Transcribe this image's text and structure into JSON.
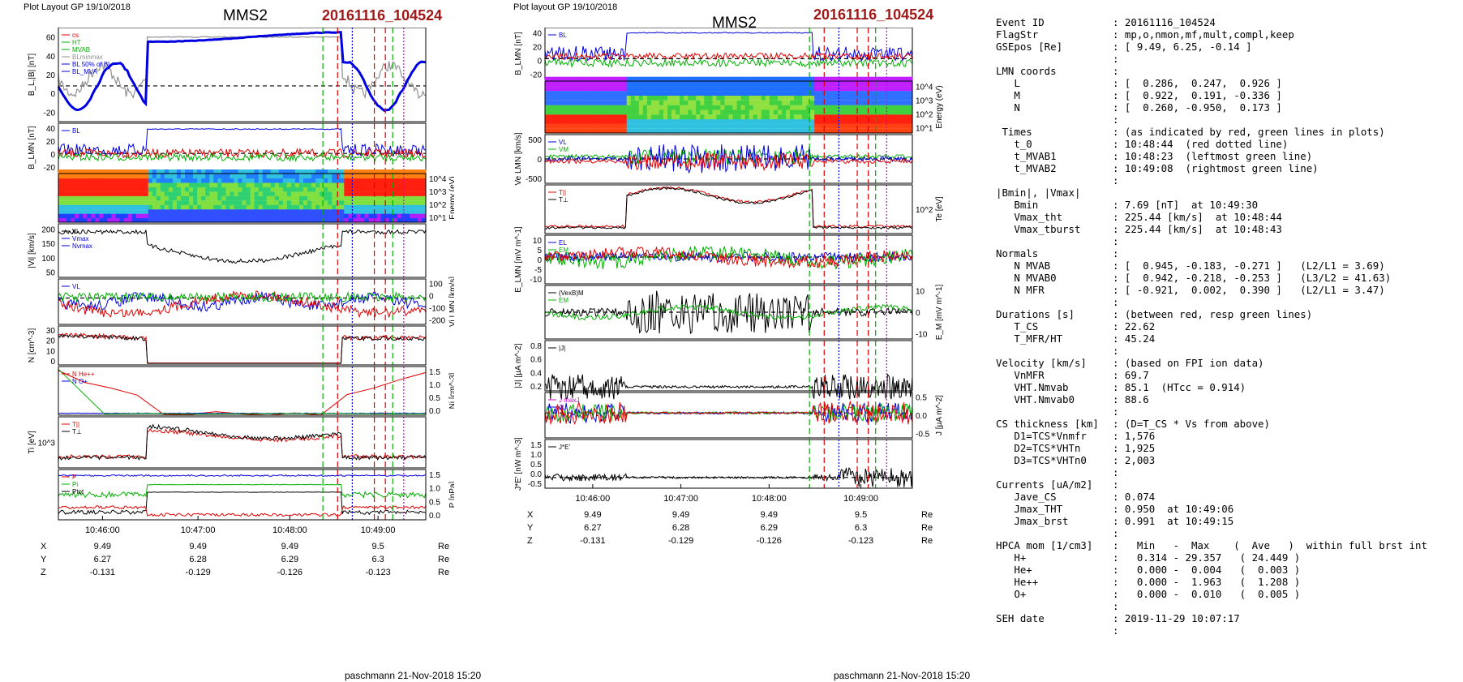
{
  "left_column": {
    "header": "Plot Layout GP 19/10/2018",
    "spacecraft": "MMS2",
    "event": "20161116_104524",
    "footer": "paschmann 21-Nov-2018 15:20",
    "time_ticks": [
      "10:46:00",
      "10:47:00",
      "10:48:00",
      "10:49:00"
    ],
    "position_rows": [
      {
        "label": "X",
        "values": [
          "9.49",
          "9.49",
          "9.49",
          "9.5"
        ],
        "unit": "Re"
      },
      {
        "label": "Y",
        "values": [
          "6.27",
          "6.28",
          "6.29",
          "6.3"
        ],
        "unit": "Re"
      },
      {
        "label": "Z",
        "values": [
          "-0.131",
          "-0.129",
          "-0.126",
          "-0.123"
        ],
        "unit": "Re"
      }
    ]
  },
  "right_column": {
    "header": "Plot layout GP 19/10/2018",
    "spacecraft": "MMS2",
    "event": "20161116_104524",
    "footer": "paschmann 21-Nov-2018 15:20",
    "time_ticks": [
      "10:46:00",
      "10:47:00",
      "10:48:00",
      "10:49:00"
    ],
    "position_rows": [
      {
        "label": "X",
        "values": [
          "9.49",
          "9.49",
          "9.49",
          "9.5"
        ],
        "unit": "Re"
      },
      {
        "label": "Y",
        "values": [
          "6.27",
          "6.28",
          "6.29",
          "6.3"
        ],
        "unit": "Re"
      },
      {
        "label": "Z",
        "values": [
          "-0.131",
          "-0.129",
          "-0.126",
          "-0.123"
        ],
        "unit": "Re"
      }
    ]
  },
  "chart_data": [
    {
      "type": "line",
      "group": "left",
      "panels": [
        {
          "ylabel": "B_L,|B| [nT]",
          "yticks": [
            "60",
            "40",
            "20",
            "0",
            "-20"
          ],
          "ytick_side": "left",
          "legend": [
            "cs",
            "HT",
            "MVAB",
            "BLminmax",
            "BL 50% of BL",
            "BL_MVA"
          ]
        },
        {
          "ylabel": "B_LMN [nT]",
          "yticks": [
            "40",
            "20",
            "0",
            "-20"
          ],
          "ytick_side": "left",
          "legend": [
            "BL"
          ]
        },
        {
          "ylabel": "Energy (eV)",
          "yticks": [
            "10^4",
            "10^3",
            "10^2",
            "10^1"
          ],
          "ytick_side": "right",
          "legend": []
        },
        {
          "ylabel": "|Vi| [km/s]",
          "yticks": [
            "200",
            "150",
            "100",
            "50"
          ],
          "ytick_side": "left",
          "legend": [
            "Vi",
            "Vmax",
            "Nvmax"
          ]
        },
        {
          "ylabel": "Vi LMN [km/s]",
          "yticks": [
            "100",
            "0",
            "-100",
            "-200"
          ],
          "ytick_side": "right",
          "legend": [
            "VL"
          ]
        },
        {
          "ylabel": "N [cm^-3]",
          "yticks": [
            "30",
            "20",
            "10",
            "0"
          ],
          "ytick_side": "left",
          "legend": []
        },
        {
          "ylabel": "Ni [cm^-3]",
          "yticks": [
            "1.5",
            "1.0",
            "0.5",
            "0.0"
          ],
          "ytick_side": "right",
          "legend": [
            "N He++",
            "N O+"
          ]
        },
        {
          "ylabel": "Ti [eV]",
          "yticks": [
            "10^3"
          ],
          "ytick_side": "left",
          "legend": [
            "T||",
            "T⊥"
          ]
        },
        {
          "ylabel": "P [nPa]",
          "yticks": [
            "1.5",
            "1.0",
            "0.5",
            "0.0"
          ],
          "ytick_side": "right",
          "legend": [
            "P",
            "Pi",
            "Ptot"
          ]
        }
      ]
    },
    {
      "type": "line",
      "group": "right",
      "panels": [
        {
          "ylabel": "B_LMN [nT]",
          "yticks": [
            "40",
            "20",
            "0",
            "-20"
          ],
          "ytick_side": "left",
          "legend": [
            "BL"
          ]
        },
        {
          "ylabel": "Energy (eV)",
          "yticks": [
            "10^4",
            "10^3",
            "10^2",
            "10^1"
          ],
          "ytick_side": "right",
          "legend": []
        },
        {
          "ylabel": "Ve LMN [km/s]",
          "yticks": [
            "500",
            "0",
            "-500"
          ],
          "ytick_side": "left",
          "legend": [
            "VL",
            "VM"
          ]
        },
        {
          "ylabel": "Te [eV]",
          "yticks": [
            "10^2"
          ],
          "ytick_side": "right",
          "legend": [
            "T||",
            "T⊥"
          ]
        },
        {
          "ylabel": "E_LMN [mV m^-1]",
          "yticks": [
            "10",
            "5",
            "0",
            "-5",
            "-10"
          ],
          "ytick_side": "left",
          "legend": [
            "EL",
            "EM",
            "EN"
          ]
        },
        {
          "ylabel": "E_M [mV m^-1]",
          "yticks": [
            "10",
            "0",
            "-10"
          ],
          "ytick_side": "right",
          "legend": [
            "(VexB)M",
            "EM"
          ]
        },
        {
          "ylabel": "|J| [µA m^-2]",
          "yticks": [
            "0.8",
            "0.6",
            "0.4",
            "0.2"
          ],
          "ytick_side": "left",
          "legend": [
            "|J|"
          ]
        },
        {
          "ylabel": "J [µA m^-2]",
          "yticks": [
            "0.5",
            "0.0",
            "-0.5"
          ],
          "ytick_side": "right",
          "legend": [
            "J maxJ",
            "JL"
          ]
        },
        {
          "ylabel": "J*E' [nW m^-3]",
          "yticks": [
            "1.5",
            "1.0",
            "0.5",
            "0.0",
            "-0.5"
          ],
          "ytick_side": "left",
          "legend": [
            "J*E'"
          ]
        }
      ]
    }
  ],
  "summary": [
    {
      "k": "Event ID",
      "v": ": 20161116_104524"
    },
    {
      "k": "FlagStr",
      "v": ": mp,o,nmon,mf,mult,compl,keep"
    },
    {
      "k": "GSEpos [Re]",
      "v": ": [ 9.49, 6.25, -0.14 ]"
    },
    {
      "k": "",
      "v": ":"
    },
    {
      "k": "LMN coords",
      "v": ":"
    },
    {
      "k": "   L",
      "v": ": [  0.286,  0.247,  0.926 ]"
    },
    {
      "k": "   M",
      "v": ": [  0.922,  0.191, -0.336 ]"
    },
    {
      "k": "   N",
      "v": ": [  0.260, -0.950,  0.173 ]"
    },
    {
      "k": "",
      "v": ":"
    },
    {
      "k": " Times",
      "v": ": (as indicated by red, green lines in plots)"
    },
    {
      "k": "   t_0",
      "v": ": 10:48:44  (red dotted line)"
    },
    {
      "k": "   t_MVAB1",
      "v": ": 10:48:23  (leftmost green line)"
    },
    {
      "k": "   t_MVAB2",
      "v": ": 10:49:08  (rightmost green line)"
    },
    {
      "k": "",
      "v": ":"
    },
    {
      "k": "|Bmin|, |Vmax|",
      "v": ""
    },
    {
      "k": "   Bmin",
      "v": ": 7.69 [nT]  at 10:49:30"
    },
    {
      "k": "   Vmax_tht",
      "v": ": 225.44 [km/s]  at 10:48:44"
    },
    {
      "k": "   Vmax_tburst",
      "v": ": 225.44 [km/s]  at 10:48:43"
    },
    {
      "k": "",
      "v": ":"
    },
    {
      "k": "Normals",
      "v": ":"
    },
    {
      "k": "   N MVAB",
      "v": ": [  0.945, -0.183, -0.271 ]   (L2/L1 = 3.69)"
    },
    {
      "k": "   N MVAB0",
      "v": ": [  0.942, -0.218, -0.253 ]   (L3/L2 = 41.63)"
    },
    {
      "k": "   N MFR",
      "v": ": [ -0.921,  0.002,  0.390 ]   (L2/L1 = 3.47)"
    },
    {
      "k": "",
      "v": ":"
    },
    {
      "k": "Durations [s]",
      "v": ": (between red, resp green lines)"
    },
    {
      "k": "   T_CS",
      "v": ": 22.62"
    },
    {
      "k": "   T_MFR/HT",
      "v": ": 45.24"
    },
    {
      "k": "",
      "v": ":"
    },
    {
      "k": "Velocity [km/s]",
      "v": ": (based on FPI ion data)"
    },
    {
      "k": "   VnMFR",
      "v": ": 69.7"
    },
    {
      "k": "   VHT.Nmvab",
      "v": ": 85.1  (HTcc = 0.914)"
    },
    {
      "k": "   VHT.Nmvab0",
      "v": ": 88.6"
    },
    {
      "k": "",
      "v": ":"
    },
    {
      "k": "CS thickness [km]",
      "v": ": (D=T_CS * Vs from above)"
    },
    {
      "k": "   D1=TCS*Vnmfr",
      "v": ": 1,576"
    },
    {
      "k": "   D2=TCS*VHTn",
      "v": ": 1,925"
    },
    {
      "k": "   D3=TCS*VHTn0",
      "v": ": 2,003"
    },
    {
      "k": "",
      "v": ":"
    },
    {
      "k": "Currents [uA/m2]",
      "v": ":"
    },
    {
      "k": "   Jave_CS",
      "v": ": 0.074"
    },
    {
      "k": "   Jmax_THT",
      "v": ": 0.950  at 10:49:06"
    },
    {
      "k": "   Jmax_brst",
      "v": ": 0.991  at 10:49:15"
    },
    {
      "k": "",
      "v": ":"
    },
    {
      "k": "HPCA mom [1/cm3]",
      "v": ":   Min   -  Max    (  Ave   )  within full brst int"
    },
    {
      "k": "   H+",
      "v": ":   0.314 - 29.357   ( 24.449 )"
    },
    {
      "k": "   He+",
      "v": ":   0.000 -  0.004   (  0.003 )"
    },
    {
      "k": "   He++",
      "v": ":   0.000 -  1.963   (  1.208 )"
    },
    {
      "k": "   O+",
      "v": ":   0.000 -  0.010   (  0.005 )"
    },
    {
      "k": "",
      "v": ":"
    },
    {
      "k": "SEH date",
      "v": ": 2019-11-29 10:07:17"
    },
    {
      "k": "",
      "v": ":"
    }
  ],
  "colors": {
    "event": "#a01818",
    "red": "#e00000",
    "green": "#00b000",
    "blue": "#0000e0",
    "black": "#000000",
    "magenta": "#d000d0",
    "gray": "#909090"
  }
}
